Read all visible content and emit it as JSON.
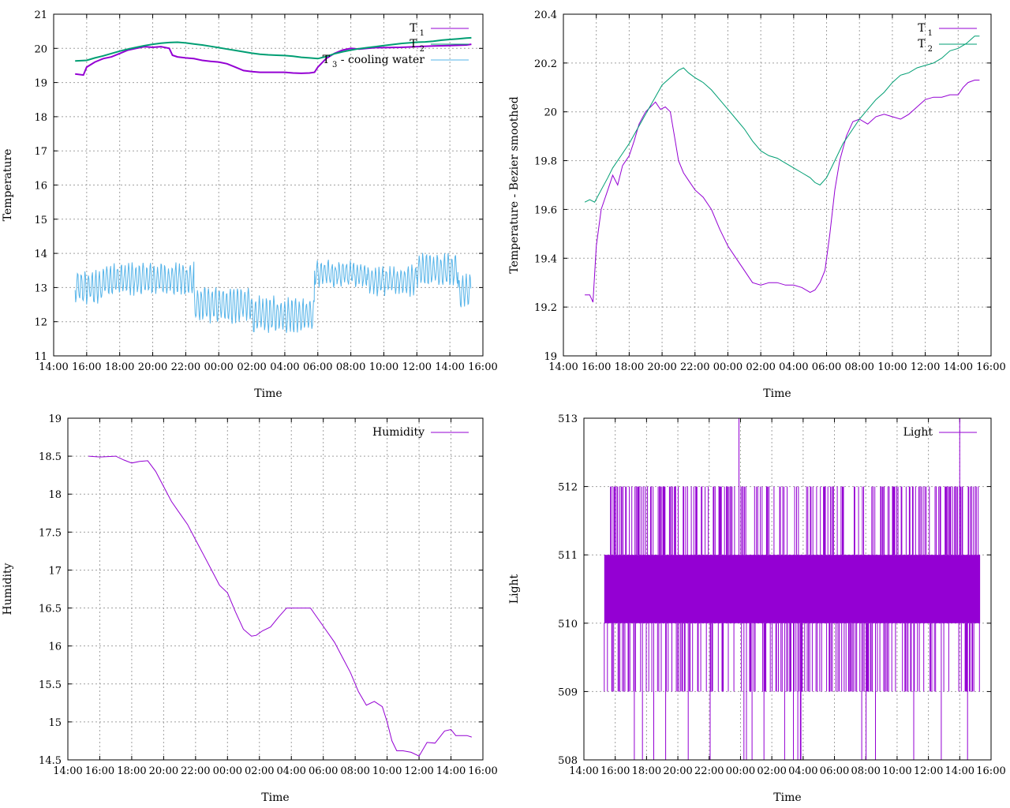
{
  "chart_data": [
    {
      "type": "line",
      "xlabel": "Time",
      "ylabel": "Temperature",
      "x_ticks": [
        "14:00",
        "16:00",
        "18:00",
        "20:00",
        "22:00",
        "00:00",
        "02:00",
        "04:00",
        "06:00",
        "08:00",
        "10:00",
        "12:00",
        "14:00",
        "16:00"
      ],
      "x_range_hours": [
        14.0,
        40.0
      ],
      "ylim": [
        11,
        21
      ],
      "y_ticks": [
        "11",
        "12",
        "13",
        "14",
        "15",
        "16",
        "17",
        "18",
        "19",
        "20",
        "21"
      ],
      "grid": true,
      "legend_position": "top-right",
      "series": [
        {
          "name": "T_1",
          "legend_label": "T",
          "legend_sub": "1",
          "color": "#9400d3",
          "x": [
            15.3,
            15.8,
            16.0,
            16.5,
            17.0,
            17.5,
            18.0,
            18.5,
            19.0,
            19.5,
            20.0,
            20.5,
            21.0,
            21.2,
            21.5,
            22.0,
            22.5,
            23.0,
            23.5,
            24.0,
            24.5,
            25.0,
            25.5,
            26.0,
            26.5,
            27.0,
            27.5,
            28.0,
            28.5,
            29.0,
            29.5,
            29.8,
            30.0,
            30.5,
            31.0,
            31.5,
            32.0,
            32.5,
            33.0,
            33.5,
            34.0,
            35.0,
            36.0,
            37.0,
            38.0,
            39.0,
            39.3
          ],
          "y": [
            19.25,
            19.22,
            19.45,
            19.6,
            19.7,
            19.75,
            19.85,
            19.95,
            20.0,
            20.05,
            20.03,
            20.05,
            20.0,
            19.8,
            19.75,
            19.72,
            19.7,
            19.65,
            19.62,
            19.6,
            19.55,
            19.45,
            19.35,
            19.32,
            19.3,
            19.3,
            19.3,
            19.3,
            19.28,
            19.27,
            19.28,
            19.3,
            19.45,
            19.7,
            19.85,
            19.95,
            20.0,
            19.98,
            20.0,
            20.02,
            20.02,
            20.03,
            20.05,
            20.07,
            20.08,
            20.1,
            20.12
          ]
        },
        {
          "name": "T_2",
          "legend_label": "T",
          "legend_sub": "2",
          "color": "#009e73",
          "x": [
            15.3,
            16.0,
            16.5,
            17.0,
            17.5,
            18.0,
            18.5,
            19.0,
            19.5,
            20.0,
            20.5,
            21.0,
            21.5,
            22.0,
            22.5,
            23.0,
            23.5,
            24.0,
            24.5,
            25.0,
            25.5,
            26.0,
            26.5,
            27.0,
            27.5,
            28.0,
            28.5,
            29.0,
            29.5,
            30.0,
            30.5,
            31.0,
            31.5,
            32.0,
            32.5,
            33.0,
            33.5,
            34.0,
            34.5,
            35.0,
            35.5,
            36.0,
            36.5,
            37.0,
            37.5,
            38.0,
            38.5,
            39.0,
            39.3
          ],
          "y": [
            19.63,
            19.65,
            19.72,
            19.78,
            19.85,
            19.92,
            19.98,
            20.03,
            20.08,
            20.12,
            20.15,
            20.17,
            20.18,
            20.16,
            20.13,
            20.1,
            20.06,
            20.02,
            19.98,
            19.94,
            19.9,
            19.86,
            19.83,
            19.81,
            19.8,
            19.79,
            19.77,
            19.74,
            19.72,
            19.7,
            19.76,
            19.84,
            19.9,
            19.95,
            19.99,
            20.02,
            20.05,
            20.08,
            20.11,
            20.14,
            20.16,
            20.18,
            20.19,
            20.21,
            20.24,
            20.26,
            20.28,
            20.3,
            20.31
          ]
        },
        {
          "name": "T_3 - cooling water",
          "legend_label": "T",
          "legend_sub": "3",
          "legend_suffix": " - cooling water",
          "color": "#56b4e9",
          "segments": [
            {
              "x0": 15.3,
              "x1": 17.0,
              "mid": 13.0,
              "amp": 0.4
            },
            {
              "x0": 17.0,
              "x1": 22.5,
              "mid": 13.25,
              "amp": 0.4
            },
            {
              "x0": 22.5,
              "x1": 26.0,
              "mid": 12.5,
              "amp": 0.45
            },
            {
              "x0": 26.0,
              "x1": 29.8,
              "mid": 12.2,
              "amp": 0.45
            },
            {
              "x0": 29.8,
              "x1": 33.0,
              "mid": 13.4,
              "amp": 0.3
            },
            {
              "x0": 33.0,
              "x1": 36.0,
              "mid": 13.2,
              "amp": 0.35
            },
            {
              "x0": 36.0,
              "x1": 38.5,
              "mid": 13.5,
              "amp": 0.4
            },
            {
              "x0": 38.5,
              "x1": 39.3,
              "mid": 12.9,
              "amp": 0.4
            }
          ],
          "period_hours": 0.22
        }
      ]
    },
    {
      "type": "line",
      "xlabel": "Time",
      "ylabel": "Temperature - Bezier smoothed",
      "x_ticks": [
        "14:00",
        "16:00",
        "18:00",
        "20:00",
        "22:00",
        "00:00",
        "02:00",
        "04:00",
        "06:00",
        "08:00",
        "10:00",
        "12:00",
        "14:00",
        "16:00"
      ],
      "x_range_hours": [
        14.0,
        40.0
      ],
      "ylim": [
        19,
        20.4
      ],
      "y_ticks": [
        "19",
        "19.2",
        "19.4",
        "19.6",
        "19.8",
        "20",
        "20.2",
        "20.4"
      ],
      "grid": true,
      "legend_position": "top-right",
      "series": [
        {
          "name": "T_1",
          "legend_label": "T",
          "legend_sub": "1",
          "color": "#9400d3",
          "x": [
            15.3,
            15.6,
            15.8,
            16.0,
            16.3,
            16.7,
            17.0,
            17.3,
            17.6,
            18.0,
            18.3,
            18.6,
            19.0,
            19.3,
            19.6,
            19.9,
            20.2,
            20.5,
            20.8,
            21.0,
            21.3,
            21.6,
            22.0,
            22.5,
            23.0,
            23.5,
            24.0,
            24.5,
            25.0,
            25.5,
            26.0,
            26.5,
            27.0,
            27.5,
            28.0,
            28.5,
            29.0,
            29.3,
            29.6,
            29.9,
            30.2,
            30.5,
            30.8,
            31.2,
            31.6,
            32.0,
            32.5,
            33.0,
            33.5,
            34.0,
            34.5,
            35.0,
            35.5,
            36.0,
            36.5,
            37.0,
            37.5,
            38.0,
            38.3,
            38.6,
            39.0,
            39.3
          ],
          "y": [
            19.25,
            19.25,
            19.22,
            19.45,
            19.6,
            19.68,
            19.74,
            19.7,
            19.78,
            19.82,
            19.88,
            19.95,
            20.0,
            20.02,
            20.04,
            20.01,
            20.02,
            20.0,
            19.88,
            19.8,
            19.75,
            19.72,
            19.68,
            19.65,
            19.6,
            19.52,
            19.45,
            19.4,
            19.35,
            19.3,
            19.29,
            19.3,
            19.3,
            19.29,
            19.29,
            19.28,
            19.26,
            19.27,
            19.3,
            19.35,
            19.5,
            19.68,
            19.8,
            19.9,
            19.96,
            19.97,
            19.95,
            19.98,
            19.99,
            19.98,
            19.97,
            19.99,
            20.02,
            20.05,
            20.06,
            20.06,
            20.07,
            20.07,
            20.1,
            20.12,
            20.13,
            20.13
          ]
        },
        {
          "name": "T_2",
          "legend_label": "T",
          "legend_sub": "2",
          "color": "#009e73",
          "x": [
            15.3,
            15.6,
            15.9,
            16.3,
            16.7,
            17.0,
            17.5,
            18.0,
            18.5,
            19.0,
            19.5,
            20.0,
            20.5,
            21.0,
            21.3,
            21.6,
            22.0,
            22.5,
            23.0,
            23.5,
            24.0,
            24.5,
            25.0,
            25.5,
            26.0,
            26.5,
            27.0,
            27.5,
            28.0,
            28.5,
            29.0,
            29.3,
            29.6,
            30.0,
            30.5,
            31.0,
            31.5,
            32.0,
            32.5,
            33.0,
            33.5,
            34.0,
            34.5,
            35.0,
            35.5,
            36.0,
            36.5,
            37.0,
            37.5,
            38.0,
            38.5,
            39.0,
            39.3
          ],
          "y": [
            19.63,
            19.64,
            19.63,
            19.68,
            19.73,
            19.77,
            19.82,
            19.87,
            19.93,
            19.99,
            20.05,
            20.11,
            20.14,
            20.17,
            20.18,
            20.16,
            20.14,
            20.12,
            20.09,
            20.05,
            20.01,
            19.97,
            19.93,
            19.88,
            19.84,
            19.82,
            19.81,
            19.79,
            19.77,
            19.75,
            19.73,
            19.71,
            19.7,
            19.73,
            19.8,
            19.87,
            19.92,
            19.97,
            20.01,
            20.05,
            20.08,
            20.12,
            20.15,
            20.16,
            20.18,
            20.19,
            20.2,
            20.22,
            20.25,
            20.26,
            20.28,
            20.31,
            20.31
          ]
        }
      ]
    },
    {
      "type": "line",
      "xlabel": "Time",
      "ylabel": "Humidity",
      "x_ticks": [
        "14:00",
        "16:00",
        "18:00",
        "20:00",
        "22:00",
        "00:00",
        "02:00",
        "04:00",
        "06:00",
        "08:00",
        "10:00",
        "12:00",
        "14:00",
        "16:00"
      ],
      "x_range_hours": [
        14.0,
        40.0
      ],
      "ylim": [
        14.5,
        19
      ],
      "y_ticks": [
        "14.5",
        "15",
        "15.5",
        "16",
        "16.5",
        "17",
        "17.5",
        "18",
        "18.5",
        "19"
      ],
      "grid": true,
      "legend_position": "top-right",
      "series": [
        {
          "name": "Humidity",
          "legend_label": "Humidity",
          "color": "#9400d3",
          "x": [
            15.3,
            16.0,
            17.0,
            17.5,
            18.0,
            18.5,
            19.0,
            19.5,
            20.0,
            20.5,
            21.0,
            21.5,
            22.0,
            22.5,
            23.0,
            23.5,
            24.0,
            24.5,
            25.0,
            25.5,
            25.8,
            26.2,
            26.7,
            27.2,
            27.7,
            28.2,
            28.7,
            29.2,
            29.7,
            30.2,
            30.7,
            31.2,
            31.7,
            32.2,
            32.7,
            33.2,
            33.7,
            34.0,
            34.3,
            34.6,
            35.0,
            35.5,
            36.0,
            36.5,
            37.0,
            37.3,
            37.6,
            38.0,
            38.3,
            38.6,
            39.0,
            39.3
          ],
          "y": [
            18.5,
            18.49,
            18.5,
            18.45,
            18.41,
            18.43,
            18.44,
            18.3,
            18.1,
            17.9,
            17.75,
            17.6,
            17.4,
            17.2,
            17.0,
            16.8,
            16.7,
            16.45,
            16.22,
            16.13,
            16.14,
            16.2,
            16.25,
            16.38,
            16.5,
            16.5,
            16.5,
            16.5,
            16.35,
            16.2,
            16.05,
            15.85,
            15.65,
            15.4,
            15.22,
            15.27,
            15.2,
            15.0,
            14.75,
            14.62,
            14.62,
            14.6,
            14.55,
            14.73,
            14.72,
            14.8,
            14.88,
            14.9,
            14.82,
            14.82,
            14.82,
            14.8
          ]
        }
      ]
    },
    {
      "type": "line",
      "xlabel": "Time",
      "ylabel": "Light",
      "x_ticks": [
        "14:00",
        "16:00",
        "18:00",
        "20:00",
        "22:00",
        "00:00",
        "02:00",
        "04:00",
        "06:00",
        "08:00",
        "10:00",
        "12:00",
        "14:00",
        "16:00"
      ],
      "x_range_hours": [
        14.0,
        40.0
      ],
      "ylim": [
        508,
        513
      ],
      "y_ticks": [
        "508",
        "509",
        "510",
        "511",
        "512",
        "513"
      ],
      "grid": true,
      "legend_position": "top-right",
      "series": [
        {
          "name": "Light",
          "legend_label": "Light",
          "color": "#9400d3",
          "x_start": 15.3,
          "x_end": 39.3,
          "band_low": 510,
          "band_high": 511,
          "spike_values": [
            508,
            509,
            512,
            513
          ]
        }
      ]
    }
  ]
}
